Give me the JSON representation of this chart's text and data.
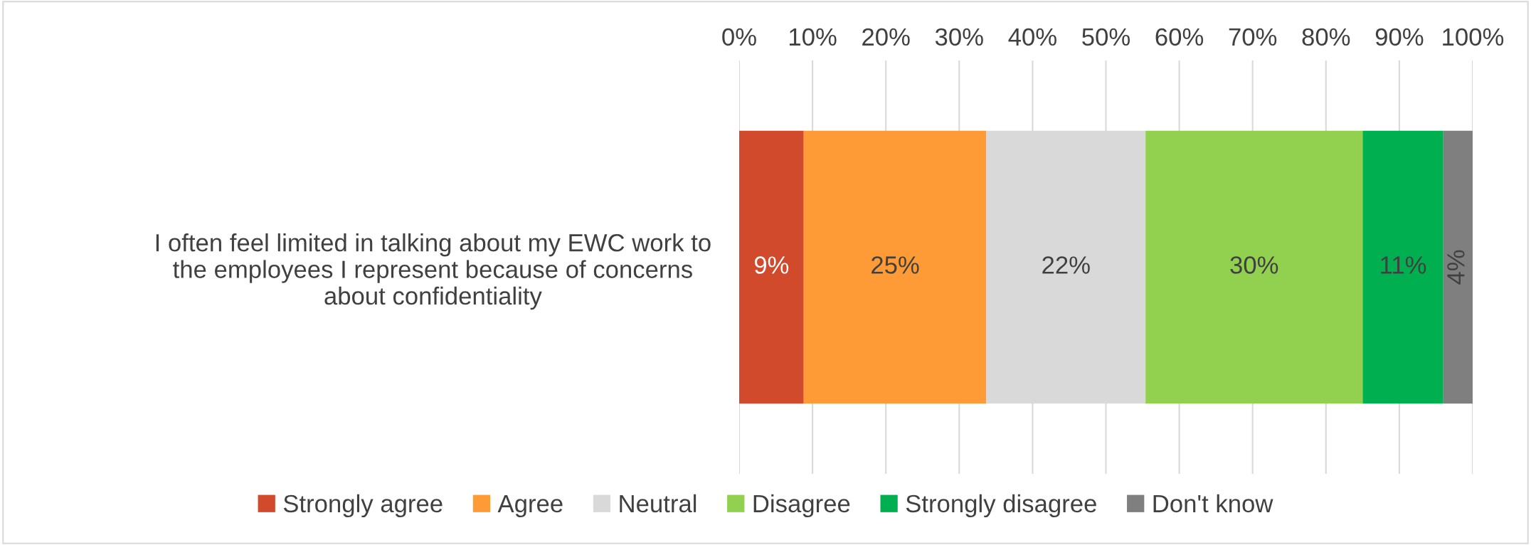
{
  "chart_data": {
    "type": "bar",
    "orientation": "horizontal",
    "stacked": true,
    "categories": [
      "I often feel limited in talking about my EWC work to\nthe employees I represent because of concerns\nabout confidentiality"
    ],
    "series": [
      {
        "name": "Strongly agree",
        "color": "#d24a2c",
        "values": [
          8.8
        ],
        "value_labels": [
          "9%"
        ]
      },
      {
        "name": "Agree",
        "color": "#fe9b36",
        "values": [
          24.9
        ],
        "value_labels": [
          "25%"
        ]
      },
      {
        "name": "Neutral",
        "color": "#d9d9d9",
        "values": [
          21.7
        ],
        "value_labels": [
          "22%"
        ]
      },
      {
        "name": "Disagree",
        "color": "#92d050",
        "values": [
          29.6
        ],
        "value_labels": [
          "30%"
        ]
      },
      {
        "name": "Strongly disagree",
        "color": "#00b050",
        "values": [
          11.0
        ],
        "value_labels": [
          "11%"
        ]
      },
      {
        "name": "Don't know",
        "color": "#7f7f7f",
        "values": [
          4.0
        ],
        "value_labels": [
          "4%"
        ]
      }
    ],
    "xlim": [
      0,
      100
    ],
    "xticks": [
      {
        "value": 0,
        "label": "0%"
      },
      {
        "value": 10,
        "label": "10%"
      },
      {
        "value": 20,
        "label": "20%"
      },
      {
        "value": 30,
        "label": "30%"
      },
      {
        "value": 40,
        "label": "40%"
      },
      {
        "value": 50,
        "label": "50%"
      },
      {
        "value": 60,
        "label": "60%"
      },
      {
        "value": 70,
        "label": "70%"
      },
      {
        "value": 80,
        "label": "80%"
      },
      {
        "value": 90,
        "label": "90%"
      },
      {
        "value": 100,
        "label": "100%"
      }
    ],
    "grid": "x",
    "legend": "bottom"
  }
}
